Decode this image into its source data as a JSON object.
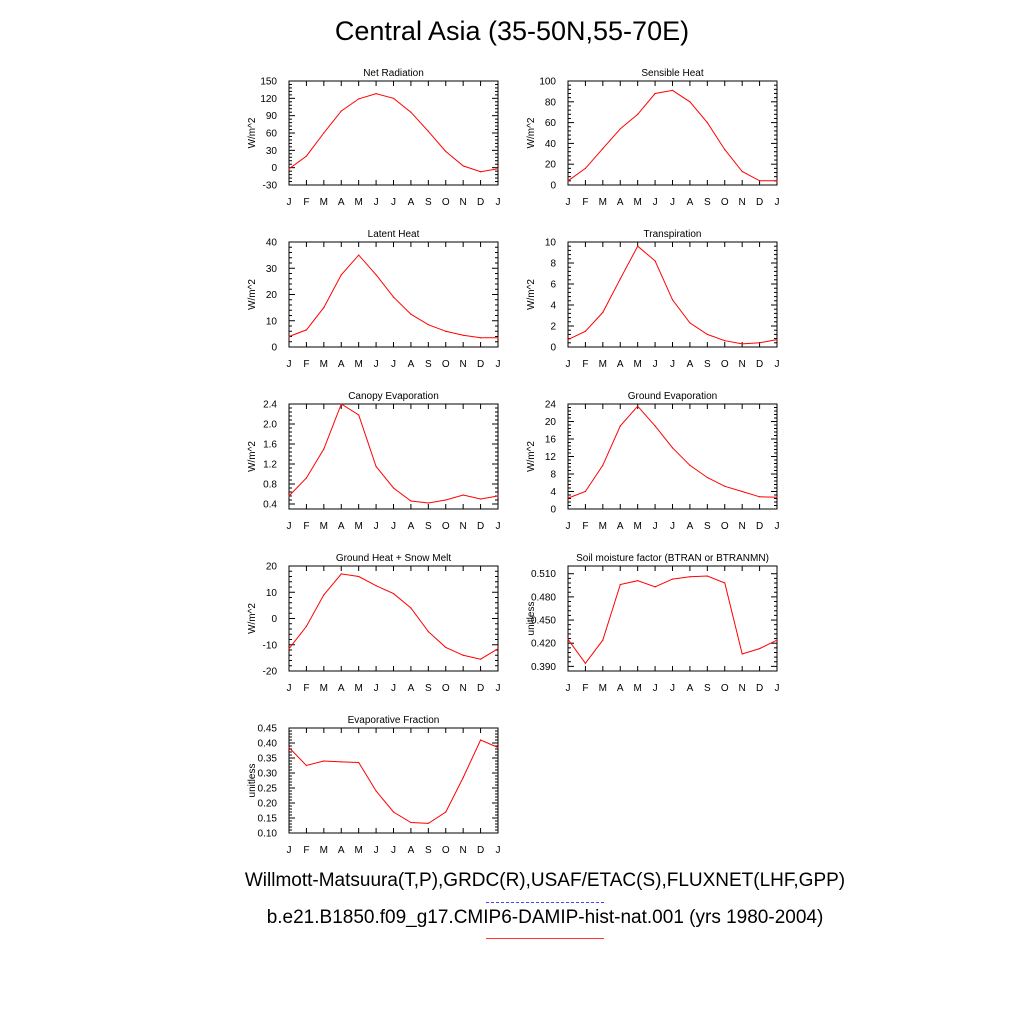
{
  "page": {
    "title": "Central Asia (35-50N,55-70E)",
    "footer_obs": "Willmott-Matsuura(T,P),GRDC(R),USAF/ETAC(S),FLUXNET(LHF,GPP)",
    "footer_model": "b.e21.B1850.f09_g17.CMIP6-DAMIP-hist-nat.001 (yrs 1980-2004)"
  },
  "colors": {
    "series": "#ff0000",
    "axis": "#000000",
    "obs_legend": "#4444ff",
    "model_legend": "#ff3333"
  },
  "chart_data": [
    {
      "type": "line",
      "title": "Net Radiation",
      "ylabel": "W/m^2",
      "categories": [
        "J",
        "F",
        "M",
        "A",
        "M",
        "J",
        "J",
        "A",
        "S",
        "O",
        "N",
        "D",
        "J"
      ],
      "ylim": [
        -30,
        150
      ],
      "yticks": [
        -30,
        0,
        30,
        60,
        90,
        120,
        150
      ],
      "ytick_labels": [
        "-30",
        "0",
        "30",
        "60",
        "90",
        "120",
        "150"
      ],
      "series": [
        {
          "values": [
            -2,
            20,
            60,
            98,
            119,
            128,
            120,
            96,
            63,
            28,
            3,
            -7,
            -2
          ]
        }
      ]
    },
    {
      "type": "line",
      "title": "Sensible Heat",
      "ylabel": "W/m^2",
      "categories": [
        "J",
        "F",
        "M",
        "A",
        "M",
        "J",
        "J",
        "A",
        "S",
        "O",
        "N",
        "D",
        "J"
      ],
      "ylim": [
        0,
        100
      ],
      "yticks": [
        0,
        20,
        40,
        60,
        80,
        100
      ],
      "ytick_labels": [
        "0",
        "20",
        "40",
        "60",
        "80",
        "100"
      ],
      "series": [
        {
          "values": [
            4,
            16,
            35,
            54,
            68,
            88,
            91,
            80,
            60,
            34,
            13,
            4,
            4
          ]
        }
      ]
    },
    {
      "type": "line",
      "title": "Latent Heat",
      "ylabel": "W/m^2",
      "categories": [
        "J",
        "F",
        "M",
        "A",
        "M",
        "J",
        "J",
        "A",
        "S",
        "O",
        "N",
        "D",
        "J"
      ],
      "ylim": [
        0,
        40
      ],
      "yticks": [
        0,
        10,
        20,
        30,
        40
      ],
      "ytick_labels": [
        "0",
        "10",
        "20",
        "30",
        "40"
      ],
      "series": [
        {
          "values": [
            4,
            6.5,
            15,
            27.5,
            35,
            27.5,
            19,
            12.5,
            8.5,
            6,
            4.5,
            3.5,
            3.5
          ]
        }
      ]
    },
    {
      "type": "line",
      "title": "Transpiration",
      "ylabel": "W/m^2",
      "categories": [
        "J",
        "F",
        "M",
        "A",
        "M",
        "J",
        "J",
        "A",
        "S",
        "O",
        "N",
        "D",
        "J"
      ],
      "ylim": [
        0,
        10
      ],
      "yticks": [
        0,
        2,
        4,
        6,
        8,
        10
      ],
      "ytick_labels": [
        "0",
        "2",
        "4",
        "6",
        "8",
        "10"
      ],
      "series": [
        {
          "values": [
            0.7,
            1.5,
            3.3,
            6.5,
            9.6,
            8.2,
            4.5,
            2.3,
            1.2,
            0.6,
            0.3,
            0.4,
            0.7
          ]
        }
      ]
    },
    {
      "type": "line",
      "title": "Canopy Evaporation",
      "ylabel": "W/m^2",
      "categories": [
        "J",
        "F",
        "M",
        "A",
        "M",
        "J",
        "J",
        "A",
        "S",
        "O",
        "N",
        "D",
        "J"
      ],
      "ylim": [
        0.3,
        2.4
      ],
      "yticks": [
        0.4,
        0.8,
        1.2,
        1.6,
        2.0,
        2.4
      ],
      "ytick_labels": [
        "0.4",
        "0.8",
        "1.2",
        "1.6",
        "2.0",
        "2.4"
      ],
      "series": [
        {
          "values": [
            0.56,
            0.92,
            1.5,
            2.4,
            2.18,
            1.15,
            0.72,
            0.46,
            0.42,
            0.48,
            0.58,
            0.5,
            0.56
          ]
        }
      ]
    },
    {
      "type": "line",
      "title": "Ground Evaporation",
      "ylabel": "W/m^2",
      "categories": [
        "J",
        "F",
        "M",
        "A",
        "M",
        "J",
        "J",
        "A",
        "S",
        "O",
        "N",
        "D",
        "J"
      ],
      "ylim": [
        0,
        24
      ],
      "yticks": [
        0,
        4,
        8,
        12,
        16,
        20,
        24
      ],
      "ytick_labels": [
        "0",
        "4",
        "8",
        "12",
        "16",
        "20",
        "24"
      ],
      "series": [
        {
          "values": [
            2.5,
            4,
            10,
            19,
            23.5,
            19,
            14,
            10,
            7.2,
            5.2,
            4,
            2.8,
            2.7
          ]
        }
      ]
    },
    {
      "type": "line",
      "title": "Ground Heat + Snow Melt",
      "ylabel": "W/m^2",
      "categories": [
        "J",
        "F",
        "M",
        "A",
        "M",
        "J",
        "J",
        "A",
        "S",
        "O",
        "N",
        "D",
        "J"
      ],
      "ylim": [
        -20,
        20
      ],
      "yticks": [
        -20,
        -10,
        0,
        10,
        20
      ],
      "ytick_labels": [
        "-20",
        "-10",
        "0",
        "10",
        "20"
      ],
      "series": [
        {
          "values": [
            -11.5,
            -3,
            9,
            17,
            16,
            12.5,
            9.5,
            4,
            -5,
            -11,
            -14,
            -15.5,
            -11.5
          ]
        }
      ]
    },
    {
      "type": "line",
      "title": "Soil moisture factor (BTRAN or BTRANMN)",
      "ylabel": "unitless",
      "categories": [
        "J",
        "F",
        "M",
        "A",
        "M",
        "J",
        "J",
        "A",
        "S",
        "O",
        "N",
        "D",
        "J"
      ],
      "ylim": [
        0.384,
        0.52
      ],
      "yticks": [
        0.39,
        0.42,
        0.45,
        0.48,
        0.51
      ],
      "ytick_labels": [
        "0.390",
        "0.420",
        "0.450",
        "0.480",
        "0.510"
      ],
      "series": [
        {
          "values": [
            0.425,
            0.394,
            0.424,
            0.496,
            0.501,
            0.493,
            0.503,
            0.506,
            0.507,
            0.498,
            0.406,
            0.413,
            0.424
          ]
        }
      ]
    },
    {
      "type": "line",
      "title": "Evaporative Fraction",
      "ylabel": "unitless",
      "categories": [
        "J",
        "F",
        "M",
        "A",
        "M",
        "J",
        "J",
        "A",
        "S",
        "O",
        "N",
        "D",
        "J"
      ],
      "ylim": [
        0.1,
        0.45
      ],
      "yticks": [
        0.1,
        0.15,
        0.2,
        0.25,
        0.3,
        0.35,
        0.4,
        0.45
      ],
      "ytick_labels": [
        "0.10",
        "0.15",
        "0.20",
        "0.25",
        "0.30",
        "0.35",
        "0.40",
        "0.45"
      ],
      "series": [
        {
          "values": [
            0.385,
            0.325,
            0.34,
            0.337,
            0.335,
            0.24,
            0.17,
            0.135,
            0.132,
            0.17,
            0.285,
            0.41,
            0.385
          ]
        }
      ]
    }
  ]
}
